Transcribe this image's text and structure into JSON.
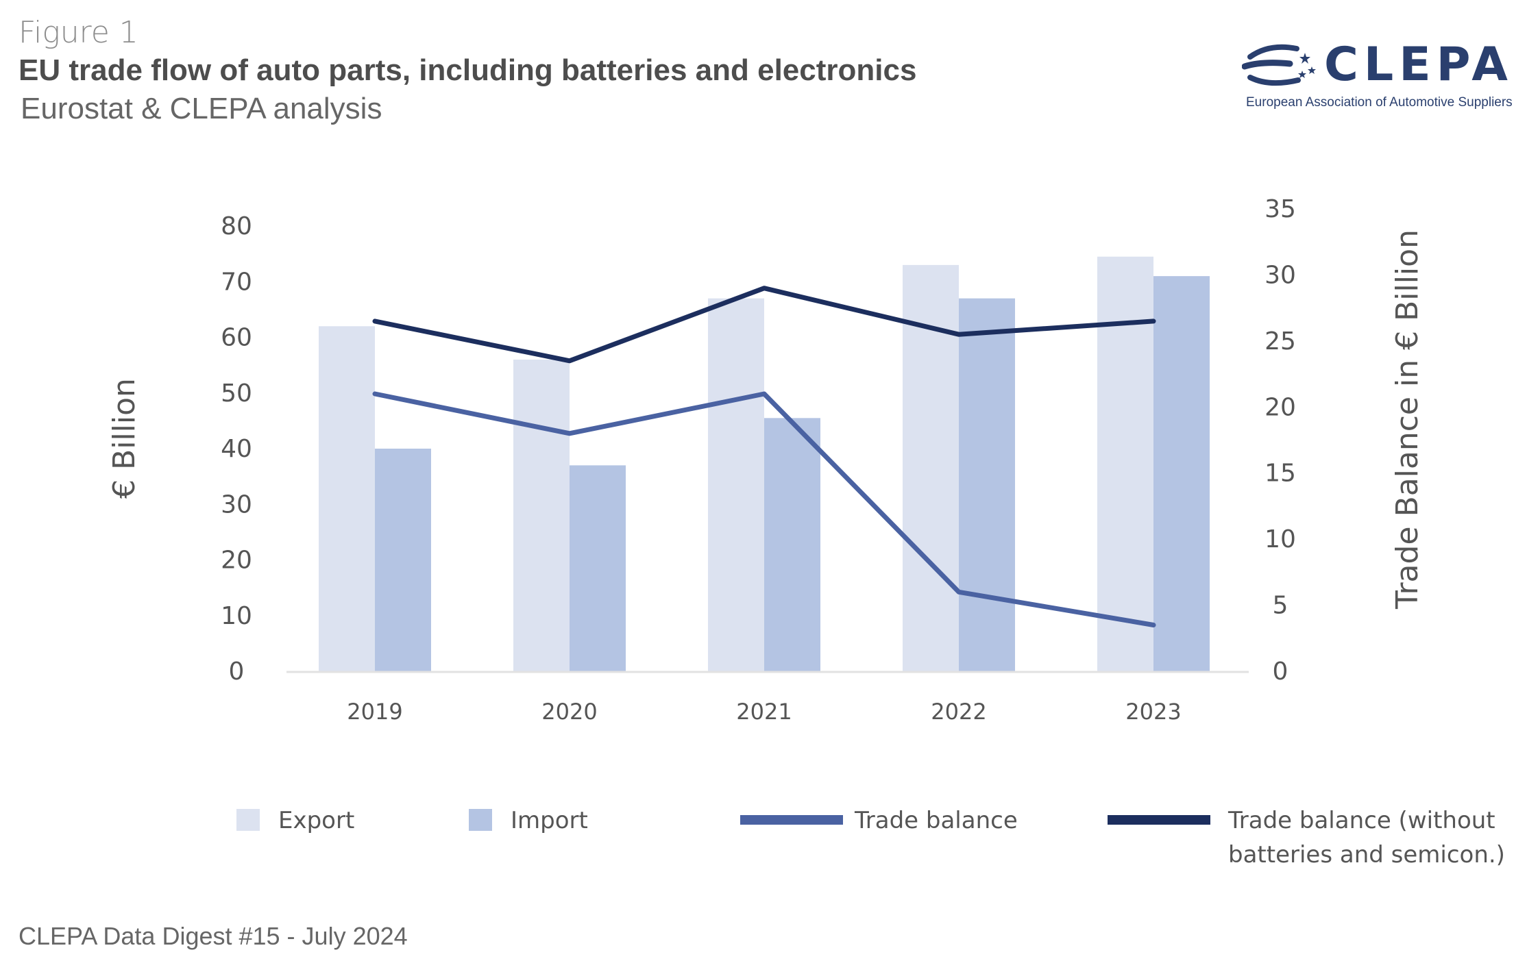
{
  "header": {
    "figure_label": "Figure 1",
    "title": "EU trade flow of auto parts, including batteries and electronics",
    "subtitle": "Eurostat & CLEPA analysis"
  },
  "logo": {
    "name": "CLEPA",
    "tagline": "European Association of Automotive Suppliers",
    "color": "#2a3f6e"
  },
  "footer": {
    "text": "CLEPA Data Digest #15 - July 2024"
  },
  "chart_data": {
    "type": "bar",
    "categories": [
      "2019",
      "2020",
      "2021",
      "2022",
      "2023"
    ],
    "ylabel": "€ Billion",
    "y2label": "Trade Balance in € Billion",
    "ylim": [
      0,
      80
    ],
    "y2lim": [
      0,
      35
    ],
    "yticks": [
      0,
      10,
      20,
      30,
      40,
      50,
      60,
      70,
      80
    ],
    "y2ticks": [
      0,
      5,
      10,
      15,
      20,
      25,
      30,
      35
    ],
    "grid": false,
    "legend_position": "bottom",
    "series": [
      {
        "name": "Export",
        "type": "bar",
        "axis": "left",
        "color": "#dce2f0",
        "values": [
          62,
          56,
          67,
          73,
          74.5
        ]
      },
      {
        "name": "Import",
        "type": "bar",
        "axis": "left",
        "color": "#b4c4e3",
        "values": [
          40,
          37,
          45.5,
          67,
          71
        ]
      },
      {
        "name": "Trade balance",
        "type": "line",
        "axis": "right",
        "color": "#4a62a2",
        "values": [
          21,
          18,
          21,
          6,
          3.5
        ]
      },
      {
        "name": "Trade balance (without batteries and semicon.)",
        "type": "line",
        "axis": "right",
        "color": "#1c2e5e",
        "values": [
          26.5,
          23.5,
          29,
          25.5,
          26.5
        ]
      }
    ]
  },
  "legend": {
    "items": [
      {
        "label": "Export",
        "kind": "square",
        "color": "#dce2f0"
      },
      {
        "label": "Import",
        "kind": "square",
        "color": "#b4c4e3"
      },
      {
        "label": "Trade balance",
        "kind": "line",
        "color": "#4a62a2"
      },
      {
        "label_line1": "Trade balance (without",
        "label_line2": "batteries and semicon.)",
        "kind": "line",
        "color": "#1c2e5e"
      }
    ]
  }
}
